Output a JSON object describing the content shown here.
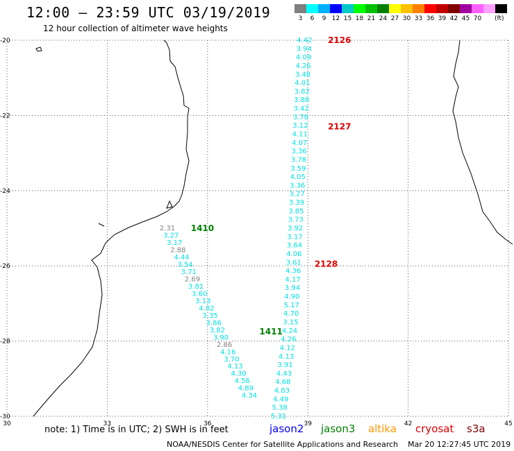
{
  "header": {
    "title": "12:00 — 23:59 UTC 03/19/2019",
    "subtitle": "12 hour collection of altimeter wave heights"
  },
  "legend": {
    "colors": [
      "#808080",
      "#00ffff",
      "#00b0ff",
      "#0000ff",
      "#00c8c8",
      "#00ff00",
      "#00c000",
      "#008000",
      "#ffff00",
      "#ffc000",
      "#ff8000",
      "#ff0000",
      "#c00000",
      "#800000",
      "#a000a0",
      "#ff60ff",
      "#ffa0ff",
      "#000000"
    ],
    "labels": [
      "3",
      "6",
      "9",
      "12",
      "15",
      "18",
      "21",
      "24",
      "27",
      "30",
      "33",
      "36",
      "39",
      "42",
      "45",
      "70"
    ],
    "unit": "(ft)"
  },
  "axes": {
    "lat_ticks": [
      "-20",
      "-22",
      "-24",
      "-26",
      "-28",
      "-30"
    ],
    "lon_ticks": [
      "30",
      "33",
      "36",
      "39",
      "42",
      "45"
    ]
  },
  "passes": [
    {
      "id": "2126",
      "color": "#e00000",
      "lat": -20.0,
      "lon": 39.6
    },
    {
      "id": "2127",
      "color": "#e00000",
      "lat": -22.3,
      "lon": 39.6
    },
    {
      "id": "2128",
      "color": "#e00000",
      "lat": -25.95,
      "lon": 39.2
    },
    {
      "id": "1410",
      "color": "#008000",
      "lat": -25.0,
      "lon": 35.5
    },
    {
      "id": "1411",
      "color": "#008000",
      "lat": -27.75,
      "lon": 37.55
    }
  ],
  "track_a": [
    {
      "v": "4.42",
      "c": "#00e0e0"
    },
    {
      "v": "3.94",
      "c": "#00e0e0"
    },
    {
      "v": "4.09",
      "c": "#00e0e0"
    },
    {
      "v": "4.26",
      "c": "#00e0e0"
    },
    {
      "v": "3.48",
      "c": "#00e0e0"
    },
    {
      "v": "4.01",
      "c": "#00e0e0"
    },
    {
      "v": "3.82",
      "c": "#00e0e0"
    },
    {
      "v": "3.88",
      "c": "#00e0e0"
    },
    {
      "v": "3.42",
      "c": "#00e0e0"
    },
    {
      "v": "3.78",
      "c": "#00e0e0"
    },
    {
      "v": "3.12",
      "c": "#00e0e0"
    },
    {
      "v": "4.11",
      "c": "#00e0e0"
    },
    {
      "v": "4.07",
      "c": "#00e0e0"
    },
    {
      "v": "3.36",
      "c": "#00e0e0"
    },
    {
      "v": "3.78",
      "c": "#00e0e0"
    },
    {
      "v": "3.59",
      "c": "#00e0e0"
    },
    {
      "v": "4.05",
      "c": "#00e0e0"
    },
    {
      "v": "3.36",
      "c": "#00e0e0"
    },
    {
      "v": "3.27",
      "c": "#00e0e0"
    },
    {
      "v": "3.39",
      "c": "#00e0e0"
    },
    {
      "v": "3.85",
      "c": "#00e0e0"
    },
    {
      "v": "3.73",
      "c": "#00e0e0"
    },
    {
      "v": "3.92",
      "c": "#00e0e0"
    },
    {
      "v": "3.17",
      "c": "#00e0e0"
    },
    {
      "v": "3.64",
      "c": "#00e0e0"
    },
    {
      "v": "4.06",
      "c": "#00e0e0"
    },
    {
      "v": "3.61",
      "c": "#00e0e0"
    },
    {
      "v": "4.36",
      "c": "#00e0e0"
    },
    {
      "v": "4.17",
      "c": "#00e0e0"
    },
    {
      "v": "3.94",
      "c": "#00e0e0"
    },
    {
      "v": "4.90",
      "c": "#00e0e0"
    },
    {
      "v": "5.17",
      "c": "#00e0e0"
    },
    {
      "v": "4.70",
      "c": "#00e0e0"
    },
    {
      "v": "3.15",
      "c": "#00e0e0"
    },
    {
      "v": "4.24",
      "c": "#00e0e0"
    },
    {
      "v": "4.26",
      "c": "#00e0e0"
    },
    {
      "v": "4.12",
      "c": "#00e0e0"
    },
    {
      "v": "4.13",
      "c": "#00e0e0"
    },
    {
      "v": "3.91",
      "c": "#00e0e0"
    },
    {
      "v": "4.43",
      "c": "#00e0e0"
    },
    {
      "v": "4.68",
      "c": "#00e0e0"
    },
    {
      "v": "4.83",
      "c": "#00e0e0"
    },
    {
      "v": "4.49",
      "c": "#00e0e0"
    },
    {
      "v": "5.38",
      "c": "#00e0e0"
    },
    {
      "v": "5.31",
      "c": "#00e0e0"
    }
  ],
  "track_b": [
    {
      "v": "2.31",
      "c": "#808080"
    },
    {
      "v": "3.27",
      "c": "#00e0e0"
    },
    {
      "v": "3.17",
      "c": "#00e0e0"
    },
    {
      "v": "2.88",
      "c": "#808080"
    },
    {
      "v": "4.44",
      "c": "#00e0e0"
    },
    {
      "v": "3.54",
      "c": "#00e0e0"
    },
    {
      "v": "3.71",
      "c": "#00e0e0"
    },
    {
      "v": "2.69",
      "c": "#808080"
    },
    {
      "v": "3.81",
      "c": "#00e0e0"
    },
    {
      "v": "3.60",
      "c": "#00e0e0"
    },
    {
      "v": "3.13",
      "c": "#00e0e0"
    },
    {
      "v": "4.02",
      "c": "#00e0e0"
    },
    {
      "v": "3.35",
      "c": "#00e0e0"
    },
    {
      "v": "3.86",
      "c": "#00e0e0"
    },
    {
      "v": "3.82",
      "c": "#00e0e0"
    },
    {
      "v": "3.90",
      "c": "#00e0e0"
    },
    {
      "v": "2.86",
      "c": "#808080"
    },
    {
      "v": "4.16",
      "c": "#00e0e0"
    },
    {
      "v": "3.70",
      "c": "#00e0e0"
    },
    {
      "v": "4.13",
      "c": "#00e0e0"
    },
    {
      "v": "4.30",
      "c": "#00e0e0"
    },
    {
      "v": "4.56",
      "c": "#00e0e0"
    },
    {
      "v": "4.89",
      "c": "#00e0e0"
    },
    {
      "v": "4.34",
      "c": "#00e0e0"
    }
  ],
  "note": "note: 1) Time is in UTC; 2) SWH is in feet",
  "satellites": [
    {
      "name": "jason2",
      "color": "#0000ff"
    },
    {
      "name": "jason3",
      "color": "#008000"
    },
    {
      "name": "altika",
      "color": "#ff9900"
    },
    {
      "name": "cryosat",
      "color": "#e00000"
    },
    {
      "name": "s3a",
      "color": "#800000"
    }
  ],
  "footer": "NOAA/NESDIS Center for Satellite Applications and Research    Mar 20 12:27:45 UTC 2019"
}
